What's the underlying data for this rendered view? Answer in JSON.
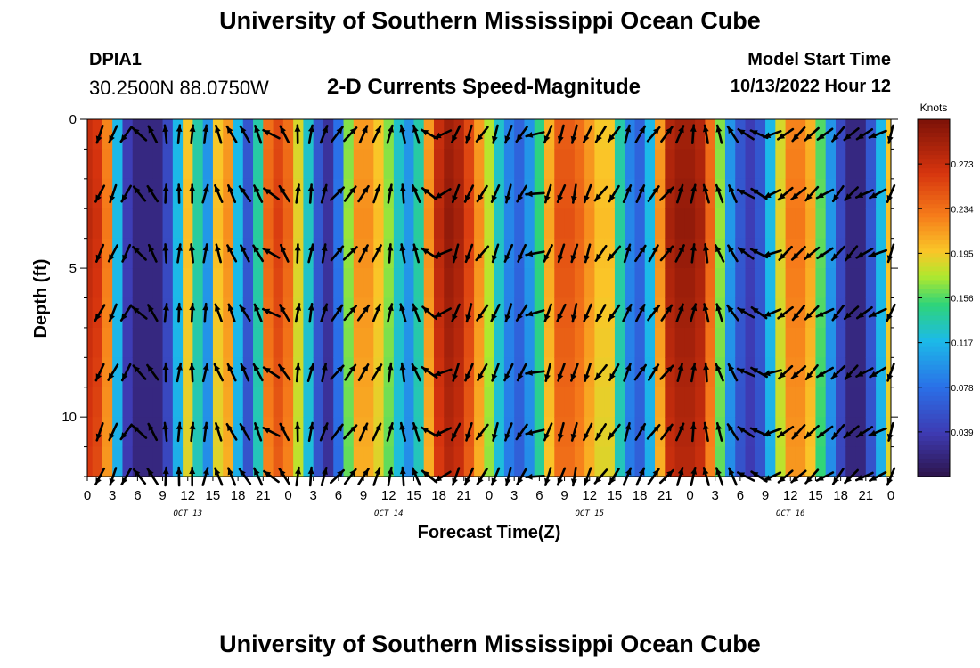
{
  "header": {
    "title": "University of Southern Mississippi Ocean Cube",
    "station_id": "DPIA1",
    "station_coords": "30.2500N  88.0750W",
    "subtitle": "2-D Currents Speed-Magnitude",
    "model_start_label": "Model Start Time",
    "model_start_value": "10/13/2022 Hour 12"
  },
  "footer": {
    "repeated_title": "University of Southern Mississippi Ocean Cube"
  },
  "colors": {
    "background": "#ffffff",
    "text": "#000000",
    "arrow": "#000000"
  },
  "chart_data": {
    "type": "heatmap",
    "title": "2-D Currents Speed-Magnitude",
    "xlabel": "Forecast Time(Z)",
    "ylabel": "Depth (ft)",
    "x_range_hours": [
      0,
      96
    ],
    "x_step_hours": 3,
    "y_range_ft": [
      0,
      12
    ],
    "y_inverted": true,
    "x_tick_labels": [
      "0",
      "3",
      "6",
      "9",
      "12",
      "15",
      "18",
      "21",
      "0",
      "3",
      "6",
      "9",
      "12",
      "15",
      "18",
      "21",
      "0",
      "3",
      "6",
      "9",
      "12",
      "15",
      "18",
      "21",
      "0",
      "3",
      "6",
      "9",
      "12",
      "15",
      "18",
      "21",
      "0"
    ],
    "day_labels": [
      {
        "label": "OCT 13",
        "hour": 12
      },
      {
        "label": "OCT 14",
        "hour": 36
      },
      {
        "label": "OCT 15",
        "hour": 60
      },
      {
        "label": "OCT 16",
        "hour": 84
      }
    ],
    "y_ticks": [
      0,
      5,
      10
    ],
    "colorbar": {
      "label": "Knots",
      "ticks": [
        0.273,
        0.234,
        0.195,
        0.156,
        0.117,
        0.078,
        0.039
      ],
      "range": [
        0.0,
        0.312
      ]
    },
    "speed_knots_by_hour": [
      0.28,
      0.27,
      0.23,
      0.12,
      0.04,
      0.02,
      0.02,
      0.02,
      0.05,
      0.12,
      0.2,
      0.14,
      0.1,
      0.2,
      0.22,
      0.12,
      0.06,
      0.14,
      0.24,
      0.26,
      0.24,
      0.19,
      0.13,
      0.06,
      0.03,
      0.08,
      0.17,
      0.22,
      0.22,
      0.2,
      0.17,
      0.13,
      0.1,
      0.14,
      0.22,
      0.28,
      0.3,
      0.29,
      0.26,
      0.22,
      0.18,
      0.13,
      0.09,
      0.07,
      0.1,
      0.15,
      0.21,
      0.25,
      0.25,
      0.24,
      0.22,
      0.2,
      0.2,
      0.14,
      0.09,
      0.07,
      0.12,
      0.22,
      0.29,
      0.3,
      0.3,
      0.29,
      0.24,
      0.17,
      0.1,
      0.06,
      0.04,
      0.06,
      0.12,
      0.19,
      0.23,
      0.23,
      0.21,
      0.16,
      0.1,
      0.05,
      0.02,
      0.02,
      0.06,
      0.12,
      0.2
    ],
    "arrow_directions_deg": [
      205,
      205,
      210,
      315,
      330,
      0,
      5,
      0,
      10,
      340,
      335,
      330,
      335,
      300,
      330,
      5,
      10,
      15,
      40,
      40,
      30,
      25,
      10,
      350,
      340,
      305,
      245,
      200,
      200,
      215,
      200,
      200,
      210,
      260,
      200,
      200,
      195,
      200,
      215,
      215,
      20,
      30,
      35,
      40,
      20,
      10,
      350,
      340,
      330,
      300,
      300,
      250,
      230,
      225,
      225,
      240,
      220,
      225,
      240,
      245,
      200
    ],
    "arrow_speeds_knots": [
      0.2,
      0.2,
      0.2,
      0.1,
      0.15,
      0.2,
      0.2,
      0.2,
      0.2,
      0.2,
      0.2,
      0.2,
      0.2,
      0.2,
      0.2,
      0.2,
      0.2,
      0.2,
      0.2,
      0.2,
      0.2,
      0.2,
      0.2,
      0.2,
      0.2,
      0.2,
      0.2,
      0.2,
      0.2,
      0.2,
      0.2,
      0.2,
      0.2,
      0.2,
      0.2,
      0.2,
      0.2,
      0.2,
      0.2,
      0.2,
      0.2,
      0.2,
      0.2,
      0.2,
      0.2,
      0.2,
      0.2,
      0.2,
      0.2,
      0.2,
      0.2,
      0.2,
      0.2,
      0.2,
      0.2,
      0.2,
      0.2,
      0.2,
      0.2,
      0.2,
      0.2
    ],
    "arrow_depths_ft": [
      0.5,
      2.5,
      4.5,
      6.5,
      8.5,
      10.5,
      12
    ]
  }
}
